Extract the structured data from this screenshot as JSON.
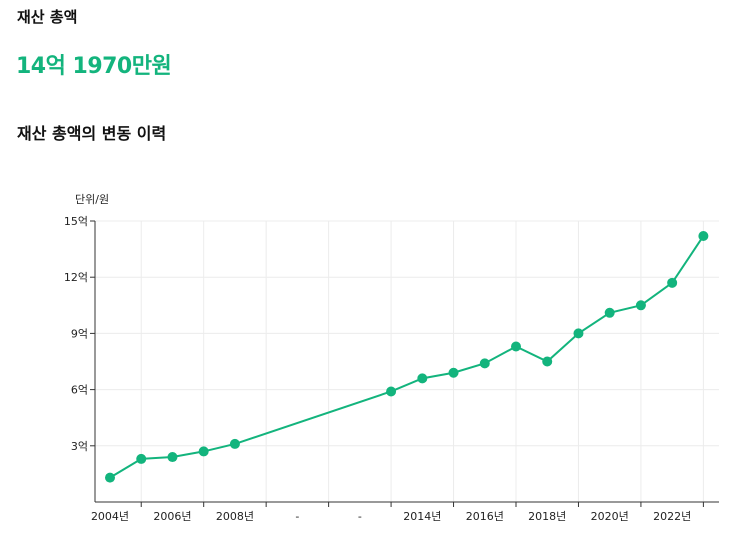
{
  "summary": {
    "label": "재산 총액",
    "value": "14억 1970만원"
  },
  "history": {
    "title": "재산 총액의 변동 이력"
  },
  "colors": {
    "accent": "#13b47d",
    "grid": "#ececec",
    "axis": "#333333"
  },
  "chart_data": {
    "type": "line",
    "unit_label": "단위/원",
    "ylim": [
      0,
      15
    ],
    "y_ticks": [
      {
        "value": 3,
        "label": "3억"
      },
      {
        "value": 6,
        "label": "6억"
      },
      {
        "value": 9,
        "label": "9억"
      },
      {
        "value": 12,
        "label": "12억"
      },
      {
        "value": 15,
        "label": "15억"
      }
    ],
    "x_categories": [
      "2004년",
      "",
      "2006년",
      "",
      "2008년",
      "",
      "-",
      "",
      "-",
      "",
      "2014년",
      "",
      "2016년",
      "",
      "2018년",
      "",
      "2020년",
      "",
      "2022년",
      ""
    ],
    "series": [
      {
        "values": [
          1.3,
          2.3,
          2.4,
          2.7,
          3.1,
          null,
          null,
          null,
          null,
          5.9,
          6.6,
          6.9,
          7.4,
          8.3,
          7.5,
          9.0,
          10.1,
          10.5,
          11.7,
          14.2
        ]
      }
    ],
    "grid": true,
    "legend": "none"
  }
}
